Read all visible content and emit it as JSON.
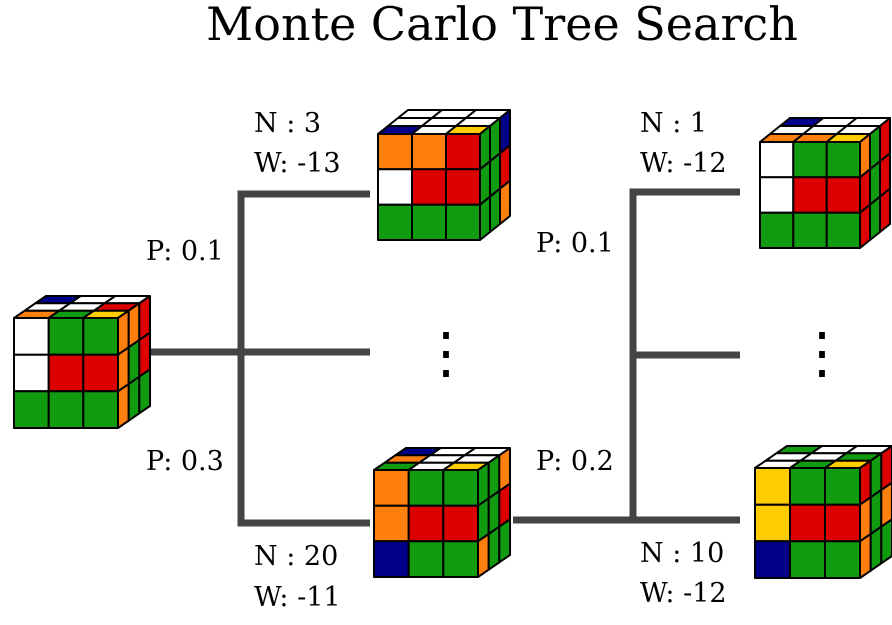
{
  "title": "Monte Carlo Tree Search",
  "colors": {
    "line": "#444444",
    "U": "#ffffff",
    "O": "#ff7f0e",
    "G": "#119b11",
    "R": "#dd0000",
    "B": "#00008b",
    "Y": "#ffcc00",
    "edge": "#000000"
  },
  "left_subtree": {
    "top_edge": {
      "prob": "P: 0.1",
      "visits": "N : 3",
      "value": "W: -13"
    },
    "bottom_edge": {
      "prob": "P: 0.3",
      "visits": "N : 20",
      "value": "W: -11"
    },
    "ellipsis": "⋮"
  },
  "right_subtree": {
    "top_edge": {
      "prob": "P: 0.1",
      "visits": "N : 1",
      "value": "W: -12"
    },
    "bottom_edge": {
      "prob": "P: 0.2",
      "visits": "N : 10",
      "value": "W: -12"
    },
    "ellipsis": "⋮"
  },
  "cubes": {
    "root": {
      "front": [
        "UGG",
        "URR",
        "GGG"
      ],
      "top": [
        "BUU",
        "UUR",
        "OGY"
      ],
      "right": [
        "OOR",
        "OGR",
        "OGG"
      ]
    },
    "child_top": {
      "front": [
        "OOR",
        "URR",
        "GGG"
      ],
      "top": [
        "UUU",
        "UUU",
        "BUY"
      ],
      "right": [
        "GGB",
        "GGR",
        "GGO"
      ]
    },
    "child_bottom": {
      "front": [
        "OGG",
        "ORR",
        "BGG"
      ],
      "top": [
        "BUU",
        "OUU",
        "GUY"
      ],
      "right": [
        "GGO",
        "GGR",
        "OGG"
      ]
    },
    "grand_top": {
      "front": [
        "UGG",
        "URR",
        "GGG"
      ],
      "top": [
        "BUU",
        "UUU",
        "OOY"
      ],
      "right": [
        "OGR",
        "RGR",
        "RGR"
      ]
    },
    "grand_bottom": {
      "front": [
        "YGG",
        "YRR",
        "BGG"
      ],
      "top": [
        "GUU",
        "UUG",
        "UGY"
      ],
      "right": [
        "RGR",
        "OGO",
        "OGG"
      ]
    }
  }
}
